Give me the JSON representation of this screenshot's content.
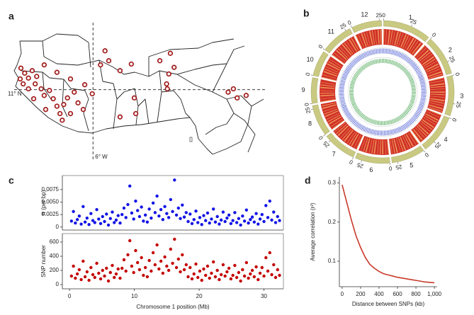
{
  "chart_data": [
    {
      "type": "map",
      "panel_label": "a",
      "color": "#a01818",
      "xlim": [
        -16.5,
        17
      ],
      "ylim": [
        3,
        18
      ],
      "hline": {
        "value": 11,
        "label": "11° N"
      },
      "vline": {
        "value": -6,
        "label": "6° W"
      },
      "lon": [
        4.3,
        -4.4,
        -3.9,
        -5.0,
        -2.4,
        -0.9,
        2.9,
        4.8,
        4.1,
        3.8,
        3.9,
        -0.5,
        -0.3,
        -2.4,
        -6.1,
        -7.1,
        -9.0,
        -10.8,
        -12.5,
        -15.6,
        -15.1,
        -14.6,
        -14.1,
        -13.5,
        -15.7,
        -15.3,
        -14.6,
        -13.7,
        -12.9,
        -12.5,
        -11.8,
        -11.3,
        -10.8,
        -10.4,
        -9.9,
        -9.4,
        -8.5,
        -8.0,
        -12.3,
        -13.9,
        -9.0,
        12.7,
        13.2,
        14.4,
        12.0,
        -7.3,
        -10.1
      ],
      "lat": [
        15.4,
        15.7,
        14.5,
        14.0,
        13.3,
        14.1,
        14.5,
        13.7,
        12.9,
        11.7,
        11.1,
        10.0,
        8.1,
        7.7,
        10.5,
        11.6,
        12.3,
        13.1,
        14.0,
        13.6,
        13.0,
        12.4,
        13.3,
        12.6,
        12.3,
        11.7,
        11.1,
        11.7,
        11.1,
        10.3,
        10.9,
        9.9,
        9.0,
        8.1,
        9.2,
        10.0,
        10.7,
        9.4,
        8.6,
        9.9,
        8.1,
        11.1,
        10.0,
        10.3,
        10.7,
        8.6,
        7.3
      ]
    },
    {
      "type": "circos",
      "panel_label": "b",
      "chromosomes": [
        "1",
        "2",
        "3",
        "4",
        "5",
        "6",
        "7",
        "8",
        "9",
        "10",
        "11",
        "12"
      ],
      "lengths": [
        43,
        36,
        36,
        35,
        30,
        31,
        30,
        28,
        23,
        23,
        29,
        27
      ],
      "ticks": [
        0,
        25
      ],
      "ideogram_color": "#c9c981",
      "heat_color": "#d03028",
      "heat_light": "#f2a860",
      "track_colors": [
        "#4858d0",
        "#3fa04a"
      ]
    },
    {
      "type": "scatter",
      "panel_label": "c",
      "xlabel": "Chromosome 1 position (Mb)",
      "xlim": [
        -1,
        33
      ],
      "xticks": [
        0,
        10,
        20,
        30
      ],
      "x": [
        0.3,
        0.6,
        0.9,
        1.2,
        1.5,
        1.8,
        2.1,
        2.4,
        2.7,
        3,
        3.3,
        3.6,
        3.9,
        4.2,
        4.5,
        4.8,
        5.1,
        5.4,
        5.7,
        6,
        6.3,
        6.6,
        6.9,
        7.2,
        7.5,
        7.8,
        8.1,
        8.4,
        8.7,
        9,
        9.3,
        9.6,
        9.9,
        10.2,
        10.5,
        10.8,
        11.1,
        11.4,
        11.7,
        12,
        12.3,
        12.6,
        12.9,
        13.2,
        13.5,
        13.8,
        14.1,
        14.4,
        14.7,
        15,
        15.3,
        15.6,
        15.9,
        16.2,
        16.5,
        16.8,
        17.1,
        17.4,
        17.7,
        18,
        18.3,
        18.6,
        18.9,
        19.2,
        19.5,
        19.8,
        20.1,
        20.4,
        20.7,
        21,
        21.3,
        21.6,
        21.9,
        22.2,
        22.5,
        22.8,
        23.1,
        23.4,
        23.7,
        24,
        24.3,
        24.6,
        24.9,
        25.2,
        25.5,
        25.8,
        26.1,
        26.4,
        26.7,
        27,
        27.3,
        27.6,
        27.9,
        28.2,
        28.5,
        28.8,
        29.1,
        29.4,
        29.7,
        30,
        30.3,
        30.6,
        30.9,
        31.2,
        31.5,
        31.8,
        32.1,
        32.4
      ],
      "series": [
        {
          "ylabel": "π (per bp)",
          "color": "#1414e6",
          "ylim": [
            -0.0006,
            0.0103
          ],
          "yticks": [
            0,
            0.0025,
            {
              "value": 0.005,
              "label": "0.0050"
            },
            0.0075
          ],
          "values": [
            0.0012,
            0.0031,
            0.0008,
            0.0015,
            0.0022,
            0.0006,
            0.0041,
            0.001,
            0.0018,
            0.0005,
            0.0027,
            0.0013,
            0.0009,
            0.0035,
            0.0016,
            0.0007,
            0.0021,
            0.0011,
            0.0026,
            0.0004,
            0.0017,
            0.003,
            0.0009,
            0.0014,
            0.0023,
            0.0008,
            0.0025,
            0.0038,
            0.0019,
            0.0045,
            0.0082,
            0.0028,
            0.0016,
            0.0052,
            0.0033,
            0.0021,
            0.004,
            0.0012,
            0.0024,
            0.001,
            0.0036,
            0.0018,
            0.0048,
            0.0029,
            0.0062,
            0.0022,
            0.0035,
            0.0015,
            0.0041,
            0.0027,
            0.0019,
            0.0055,
            0.0031,
            0.0094,
            0.0024,
            0.0038,
            0.0017,
            0.0044,
            0.002,
            0.0029,
            0.0011,
            0.0026,
            0.0007,
            0.0015,
            0.0032,
            0.0009,
            0.0019,
            0.0005,
            0.0023,
            0.0013,
            0.0028,
            0.0008,
            0.0016,
            0.0036,
            0.001,
            0.0021,
            0.0006,
            0.0014,
            0.003,
            0.0011,
            0.0018,
            0.0024,
            0.0007,
            0.0013,
            0.0029,
            0.0009,
            0.0017,
            0.0004,
            0.0022,
            0.0012,
            0.0034,
            0.0008,
            0.0015,
            0.002,
            0.001,
            0.0027,
            0.0006,
            0.0016,
            0.0025,
            0.0011,
            0.0043,
            0.0019,
            0.0052,
            0.0014,
            0.003,
            0.0009,
            0.0021,
            0.0013
          ]
        },
        {
          "ylabel": "SNP number",
          "color": "#c40000",
          "ylim": [
            -60,
            720
          ],
          "yticks": [
            0,
            200,
            400,
            600
          ],
          "values": [
            120,
            260,
            90,
            150,
            210,
            70,
            330,
            110,
            180,
            60,
            240,
            140,
            100,
            300,
            160,
            80,
            200,
            120,
            230,
            50,
            170,
            270,
            100,
            150,
            220,
            90,
            230,
            350,
            190,
            420,
            620,
            260,
            170,
            480,
            310,
            210,
            380,
            130,
            240,
            110,
            340,
            190,
            450,
            280,
            560,
            220,
            330,
            160,
            390,
            260,
            200,
            500,
            300,
            640,
            240,
            360,
            180,
            420,
            210,
            280,
            110,
            240,
            80,
            150,
            290,
            100,
            190,
            60,
            220,
            130,
            260,
            90,
            160,
            320,
            110,
            200,
            70,
            140,
            280,
            120,
            180,
            230,
            80,
            130,
            270,
            100,
            170,
            50,
            210,
            120,
            310,
            90,
            150,
            200,
            110,
            250,
            70,
            160,
            240,
            120,
            380,
            190,
            450,
            140,
            280,
            100,
            210,
            130
          ]
        }
      ]
    },
    {
      "type": "line",
      "panel_label": "d",
      "xlabel": "Distance between SNPs (kb)",
      "ylabel": "Average correlation (r²)",
      "color": "#c83a2a",
      "xlim": [
        -30,
        1030
      ],
      "ylim": [
        0.035,
        0.315
      ],
      "xticks": [
        0,
        200,
        400,
        600,
        800,
        {
          "value": 1000,
          "label": "1,000"
        }
      ],
      "yticks": [
        0.1,
        0.2,
        0.3
      ],
      "x": [
        0,
        50,
        100,
        150,
        200,
        250,
        300,
        350,
        400,
        450,
        500,
        550,
        600,
        650,
        700,
        750,
        800,
        850,
        900,
        950,
        1000
      ],
      "values": [
        0.295,
        0.25,
        0.205,
        0.165,
        0.135,
        0.11,
        0.092,
        0.082,
        0.074,
        0.068,
        0.065,
        0.062,
        0.059,
        0.057,
        0.055,
        0.053,
        0.051,
        0.049,
        0.047,
        0.046,
        0.045
      ]
    }
  ]
}
